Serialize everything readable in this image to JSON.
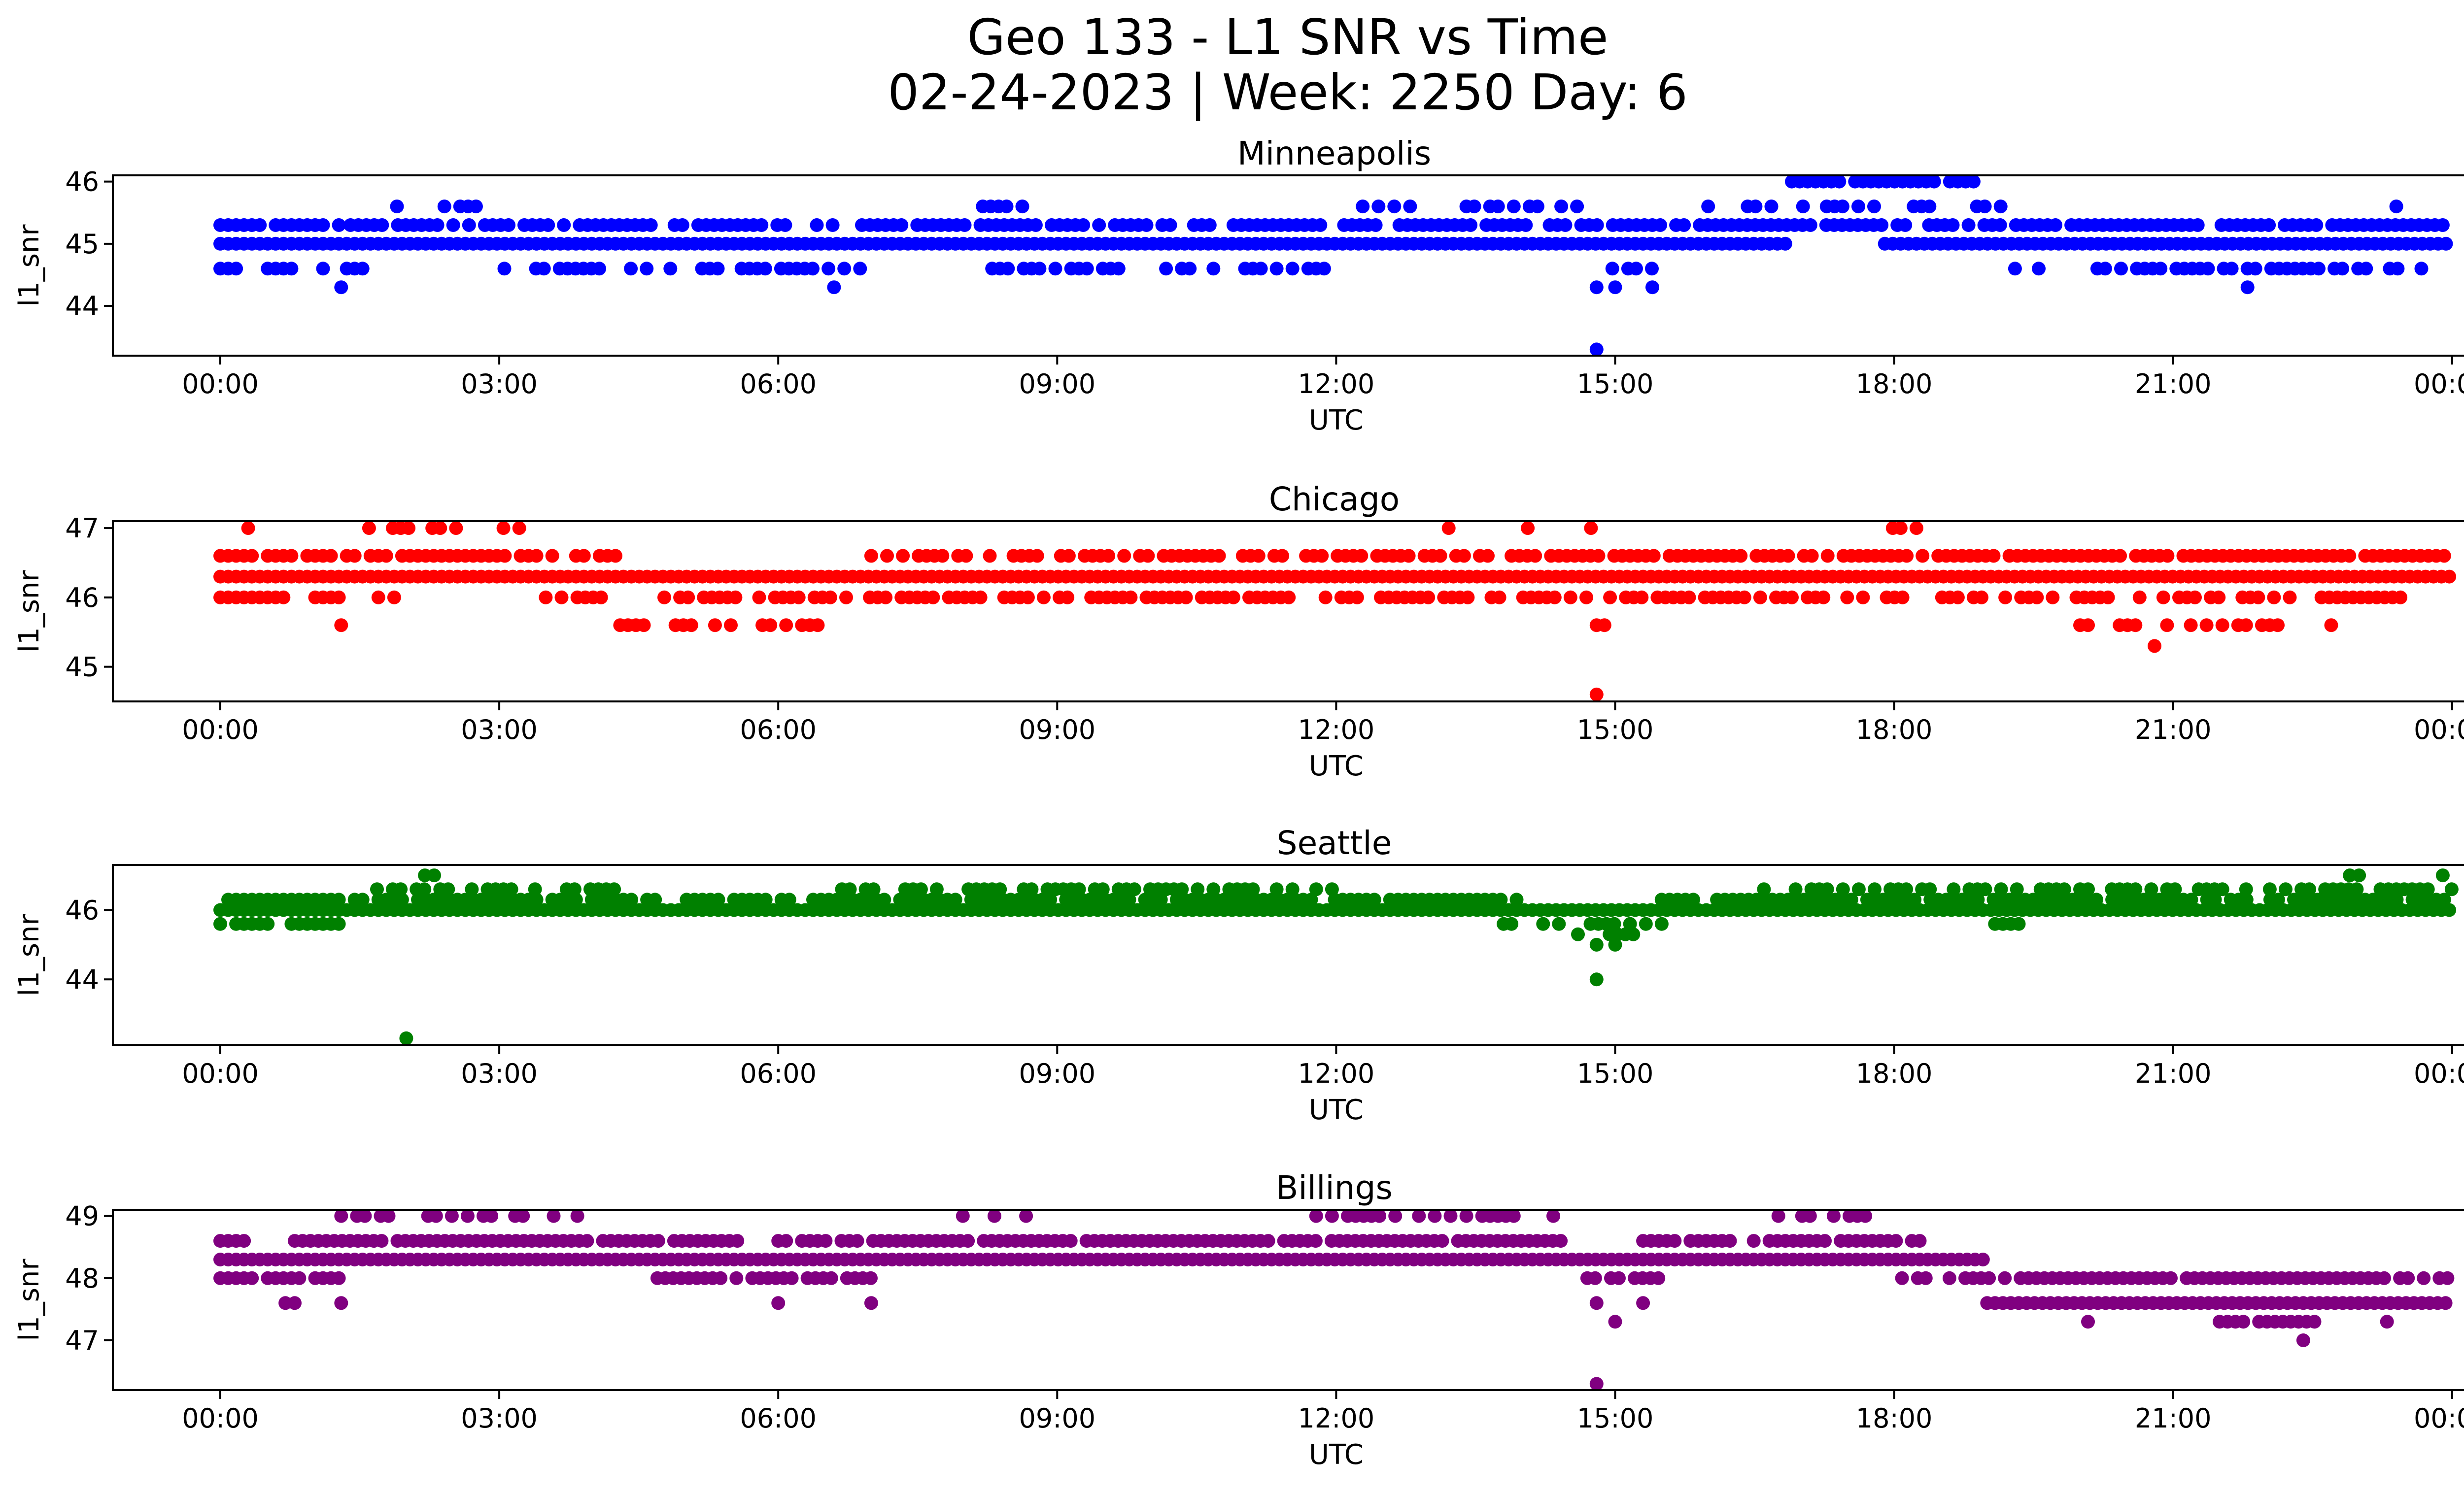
{
  "figure": {
    "title_line1": "Geo 133 - L1 SNR vs Time",
    "title_line2": "02-24-2023 | Week: 2250 Day: 6"
  },
  "chart_data": [
    {
      "type": "scatter",
      "title": "Minneapolis",
      "xlabel": "UTC",
      "ylabel": "l1_snr",
      "color": "#0000ff",
      "xlim": [
        "23:35",
        "24:25"
      ],
      "ylim": [
        43.2,
        46.1
      ],
      "xticks": [
        "00:00",
        "03:00",
        "06:00",
        "09:00",
        "12:00",
        "15:00",
        "18:00",
        "21:00",
        "00:00"
      ],
      "yticks": [
        44,
        45,
        46
      ],
      "levels": [
        {
          "y": 45.0,
          "spans": [
            [
              0.0,
              16.9
            ],
            [
              17.9,
              24.0
            ]
          ]
        },
        {
          "y": 45.3,
          "spans": [
            [
              0.0,
              1.3
            ],
            [
              1.4,
              6.7
            ],
            [
              6.9,
              24.0
            ]
          ],
          "density": 0.85
        },
        {
          "y": 44.6,
          "spans": [
            [
              0.0,
              1.6
            ],
            [
              2.8,
              6.9
            ],
            [
              8.3,
              11.9
            ],
            [
              14.8,
              15.4
            ],
            [
              19.3,
              19.6
            ],
            [
              20.1,
              23.7
            ]
          ],
          "density": 0.55
        },
        {
          "y": 45.6,
          "spans": [
            [
              1.9,
              2.8
            ],
            [
              8.2,
              8.9
            ],
            [
              12.2,
              12.8
            ],
            [
              13.4,
              14.6
            ],
            [
              16.0,
              19.2
            ]
          ],
          "density": 0.5
        },
        {
          "y": 46.0,
          "spans": [
            [
              16.9,
              18.9
            ]
          ],
          "density": 0.9
        }
      ],
      "points": [
        [
          1.3,
          44.3
        ],
        [
          6.6,
          44.3
        ],
        [
          14.8,
          44.3
        ],
        [
          15.0,
          44.3
        ],
        [
          15.4,
          44.3
        ],
        [
          14.8,
          43.3
        ],
        [
          21.8,
          44.3
        ],
        [
          23.4,
          45.6
        ]
      ]
    },
    {
      "type": "scatter",
      "title": "Chicago",
      "xlabel": "UTC",
      "ylabel": "l1_snr",
      "color": "#ff0000",
      "xlim": [
        "23:35",
        "24:25"
      ],
      "ylim": [
        44.5,
        47.1
      ],
      "xticks": [
        "00:00",
        "03:00",
        "06:00",
        "09:00",
        "12:00",
        "15:00",
        "18:00",
        "21:00",
        "00:00"
      ],
      "yticks": [
        45,
        46,
        47
      ],
      "levels": [
        {
          "y": 46.3,
          "spans": [
            [
              0.0,
              24.0
            ]
          ]
        },
        {
          "y": 46.6,
          "spans": [
            [
              0.0,
              4.3
            ],
            [
              7.0,
              24.0
            ]
          ],
          "density": 0.8
        },
        {
          "y": 46.0,
          "spans": [
            [
              0.0,
              2.0
            ],
            [
              3.5,
              11.5
            ],
            [
              11.8,
              23.5
            ]
          ],
          "density": 0.7
        },
        {
          "y": 45.6,
          "spans": [
            [
              4.3,
              6.6
            ],
            [
              14.8,
              15.0
            ],
            [
              20.0,
              22.2
            ]
          ],
          "density": 0.5
        },
        {
          "y": 47.0,
          "spans": [
            [
              1.6,
              3.3
            ],
            [
              12.7,
              14.9
            ],
            [
              17.9,
              18.3
            ]
          ],
          "density": 0.35
        }
      ],
      "points": [
        [
          0.3,
          47.0
        ],
        [
          1.3,
          45.6
        ],
        [
          14.8,
          44.6
        ],
        [
          20.8,
          45.3
        ],
        [
          22.7,
          45.6
        ]
      ]
    },
    {
      "type": "scatter",
      "title": "Seattle",
      "xlabel": "UTC",
      "ylabel": "l1_snr",
      "color": "#008000",
      "xlim": [
        "23:35",
        "24:25"
      ],
      "ylim": [
        42.1,
        47.3
      ],
      "xticks": [
        "00:00",
        "03:00",
        "06:00",
        "09:00",
        "12:00",
        "15:00",
        "18:00",
        "21:00",
        "00:00"
      ],
      "yticks": [
        44,
        46
      ],
      "levels": [
        {
          "y": 46.0,
          "spans": [
            [
              0.0,
              24.0
            ]
          ]
        },
        {
          "y": 46.3,
          "spans": [
            [
              0.0,
              14.0
            ],
            [
              15.5,
              24.0
            ]
          ],
          "density": 0.9
        },
        {
          "y": 45.6,
          "spans": [
            [
              0.0,
              1.3
            ],
            [
              13.8,
              15.6
            ],
            [
              19.0,
              19.5
            ]
          ],
          "density": 0.6
        },
        {
          "y": 46.6,
          "spans": [
            [
              1.6,
              4.4
            ],
            [
              6.6,
              12.0
            ],
            [
              16.6,
              24.0
            ]
          ],
          "density": 0.6
        },
        {
          "y": 45.3,
          "spans": [
            [
              14.6,
              15.4
            ]
          ],
          "density": 0.6
        }
      ],
      "points": [
        [
          2.2,
          47.0
        ],
        [
          2.3,
          47.0
        ],
        [
          22.9,
          47.0
        ],
        [
          23.0,
          47.0
        ],
        [
          23.9,
          47.0
        ],
        [
          14.8,
          45.0
        ],
        [
          15.0,
          45.0
        ],
        [
          14.8,
          44.0
        ],
        [
          2.0,
          42.3
        ]
      ]
    },
    {
      "type": "scatter",
      "title": "Billings",
      "xlabel": "UTC",
      "ylabel": "l1_snr",
      "color": "#800080",
      "xlim": [
        "23:35",
        "24:25"
      ],
      "ylim": [
        46.2,
        49.1
      ],
      "xticks": [
        "00:00",
        "03:00",
        "06:00",
        "09:00",
        "12:00",
        "15:00",
        "18:00",
        "21:00",
        "00:00"
      ],
      "yticks": [
        47,
        48,
        49
      ],
      "levels": [
        {
          "y": 48.3,
          "spans": [
            [
              0.0,
              19.0
            ]
          ]
        },
        {
          "y": 48.0,
          "spans": [
            [
              0.0,
              1.3
            ],
            [
              4.7,
              7.0
            ],
            [
              14.7,
              15.5
            ],
            [
              18.0,
              24.0
            ]
          ],
          "density": 0.8
        },
        {
          "y": 47.6,
          "spans": [
            [
              19.0,
              24.0
            ]
          ]
        },
        {
          "y": 48.6,
          "spans": [
            [
              0.0,
              0.3
            ],
            [
              0.8,
              5.6
            ],
            [
              6.0,
              14.6
            ],
            [
              15.3,
              18.4
            ]
          ],
          "density": 0.9
        },
        {
          "y": 49.0,
          "spans": [
            [
              1.3,
              3.3
            ],
            [
              3.5,
              4.0
            ],
            [
              7.9,
              9.0
            ],
            [
              11.7,
              14.5
            ],
            [
              16.5,
              17.7
            ]
          ],
          "density": 0.5
        },
        {
          "y": 47.3,
          "spans": [
            [
              20.0,
              20.2
            ],
            [
              21.5,
              22.6
            ]
          ],
          "density": 0.6
        }
      ],
      "points": [
        [
          0.7,
          47.6
        ],
        [
          0.8,
          47.6
        ],
        [
          1.3,
          47.6
        ],
        [
          6.0,
          47.6
        ],
        [
          7.0,
          47.6
        ],
        [
          14.8,
          47.6
        ],
        [
          15.0,
          47.3
        ],
        [
          15.3,
          47.6
        ],
        [
          22.4,
          47.0
        ],
        [
          23.3,
          47.3
        ],
        [
          14.8,
          46.3
        ]
      ]
    }
  ]
}
